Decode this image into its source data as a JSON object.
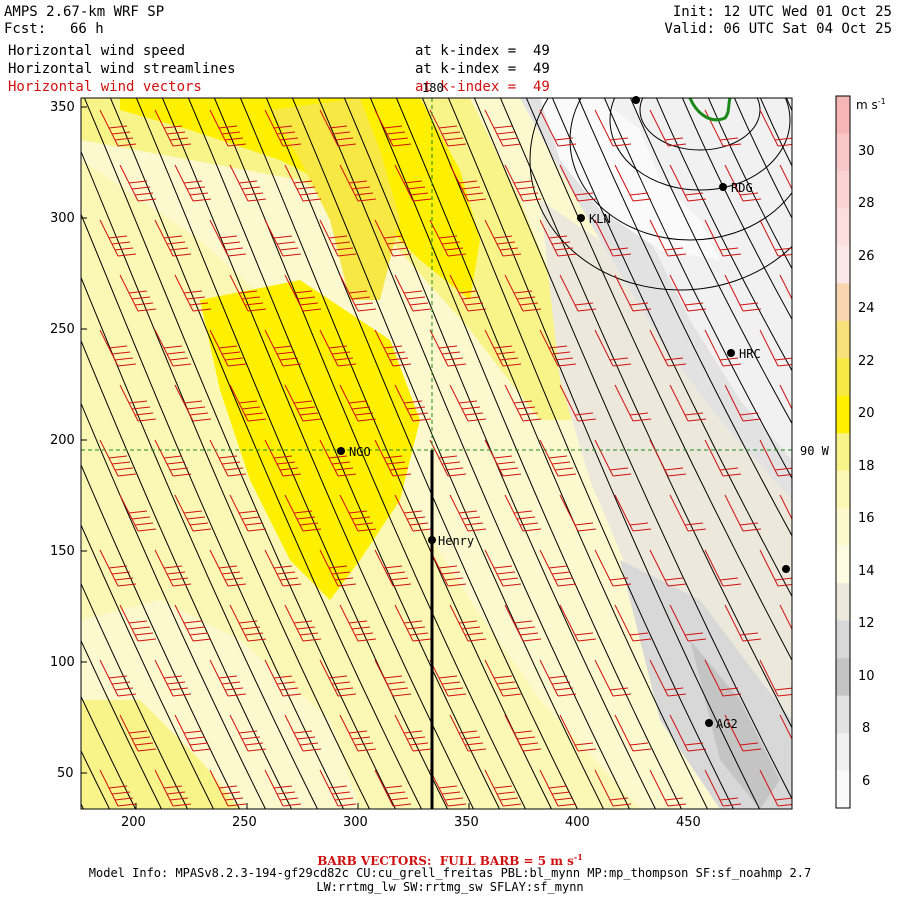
{
  "header": {
    "model": "AMPS 2.67-km WRF SP",
    "fcst_label": "Fcst:",
    "fcst_value": "66 h",
    "init": "Init: 12 UTC Wed 01 Oct 25",
    "valid": "Valid: 06 UTC Sat 04 Oct 25",
    "fields": [
      {
        "name": "Horizontal wind speed",
        "level": "at k-index =  49"
      },
      {
        "name": "Horizontal wind streamlines",
        "level": "at k-index =  49"
      },
      {
        "name": "Horizontal wind vectors",
        "level": "at k-index =  49"
      }
    ]
  },
  "map": {
    "x_ticks": [
      "200",
      "250",
      "300",
      "350",
      "400",
      "450"
    ],
    "y_ticks": [
      "350",
      "300",
      "250",
      "200",
      "150",
      "100",
      "50"
    ],
    "meridian_label": "180",
    "parallel_label": "90 W",
    "stations": [
      {
        "id": "KLN"
      },
      {
        "id": "RDG"
      },
      {
        "id": "HRC"
      },
      {
        "id": "NGO"
      },
      {
        "id": "Henry"
      },
      {
        "id": "AG2"
      }
    ]
  },
  "colorbar": {
    "unit": "m s",
    "unit_exp": "-1",
    "labels": [
      "30",
      "28",
      "26",
      "24",
      "22",
      "20",
      "18",
      "16",
      "14",
      "12",
      "10",
      "8",
      "6"
    ],
    "colors": [
      "#f7b6b6",
      "#f9c7c7",
      "#fad4d4",
      "#fbdede",
      "#fbe8e8",
      "#f9d6b0",
      "#f5e07a",
      "#f8e846",
      "#fff000",
      "#f9f48a",
      "#fbf7b4",
      "#fcf9cf",
      "#fdfbe1",
      "#ece9dc",
      "#d8d8d8",
      "#c4c4c4",
      "#e2e2e2",
      "#f1f1f1",
      "#fafafa"
    ]
  },
  "footer": {
    "barb": "BARB VECTORS:  FULL BARB = 5 m s",
    "barb_exp": "-1",
    "line1": "Model Info: MPASv8.2.3-194-gf29cd82c CU:cu_grell_freitas PBL:bl_mynn MP:mp_thompson SF:sf_noahmp 2.7",
    "line2": "LW:rrtmg_lw SW:rrtmg_sw SFLAY:sf_mynn"
  }
}
